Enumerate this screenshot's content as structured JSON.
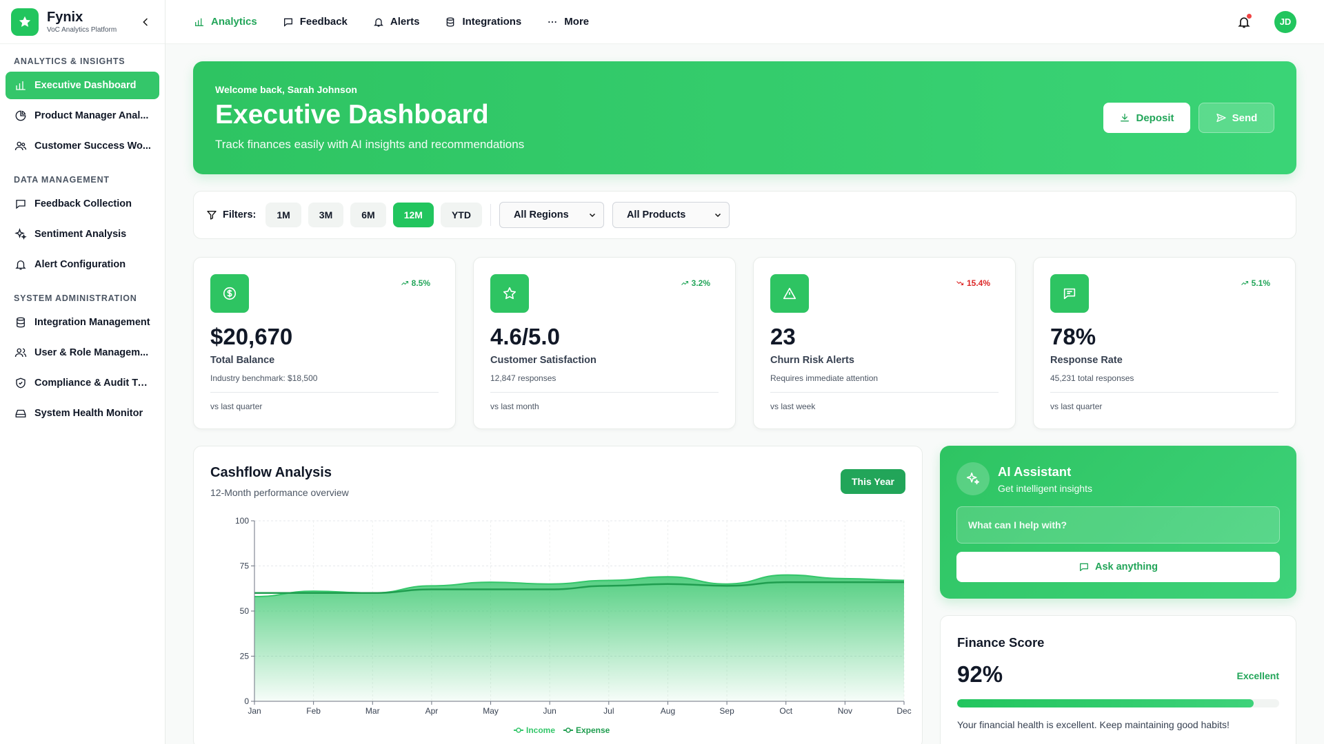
{
  "brand": {
    "name": "Fynix",
    "subtitle": "VoC Analytics Platform"
  },
  "sidebar": {
    "sections": [
      {
        "title": "ANALYTICS & INSIGHTS",
        "items": [
          {
            "label": "Executive Dashboard",
            "icon": "bar-chart-icon",
            "active": true
          },
          {
            "label": "Product Manager Anal...",
            "icon": "pie-chart-icon"
          },
          {
            "label": "Customer Success Wo...",
            "icon": "users-icon"
          }
        ]
      },
      {
        "title": "DATA MANAGEMENT",
        "items": [
          {
            "label": "Feedback Collection",
            "icon": "message-icon"
          },
          {
            "label": "Sentiment Analysis",
            "icon": "sparkles-icon"
          },
          {
            "label": "Alert Configuration",
            "icon": "bell-icon"
          }
        ]
      },
      {
        "title": "SYSTEM ADMINISTRATION",
        "items": [
          {
            "label": "Integration Management",
            "icon": "database-icon"
          },
          {
            "label": "User & Role Managem...",
            "icon": "user-group-icon"
          },
          {
            "label": "Compliance & Audit Trail",
            "icon": "shield-icon"
          },
          {
            "label": "System Health Monitor",
            "icon": "hard-drive-icon"
          }
        ]
      }
    ]
  },
  "topnav": {
    "tabs": [
      {
        "label": "Analytics",
        "icon": "bar-chart-icon",
        "active": true
      },
      {
        "label": "Feedback",
        "icon": "message-icon"
      },
      {
        "label": "Alerts",
        "icon": "bell-icon"
      },
      {
        "label": "Integrations",
        "icon": "database-icon"
      },
      {
        "label": "More",
        "icon": "more-icon"
      }
    ],
    "avatar_initials": "JD"
  },
  "hero": {
    "welcome": "Welcome back, Sarah Johnson",
    "title": "Executive Dashboard",
    "subtitle": "Track finances easily with AI insights and recommendations",
    "deposit_label": "Deposit",
    "send_label": "Send"
  },
  "filters": {
    "label": "Filters:",
    "periods": [
      "1M",
      "3M",
      "6M",
      "12M",
      "YTD"
    ],
    "active_period": "12M",
    "region": "All Regions",
    "product": "All Products"
  },
  "kpis": [
    {
      "icon": "dollar-icon",
      "change": "8.5%",
      "trend": "up",
      "value": "$20,670",
      "label": "Total Balance",
      "sub": "Industry benchmark: $18,500",
      "foot": "vs last quarter"
    },
    {
      "icon": "star-icon",
      "change": "3.2%",
      "trend": "up",
      "value": "4.6/5.0",
      "label": "Customer Satisfaction",
      "sub": "12,847 responses",
      "foot": "vs last month"
    },
    {
      "icon": "alert-triangle-icon",
      "change": "15.4%",
      "trend": "down",
      "value": "23",
      "label": "Churn Risk Alerts",
      "sub": "Requires immediate attention",
      "foot": "vs last week"
    },
    {
      "icon": "chat-icon",
      "change": "5.1%",
      "trend": "up",
      "value": "78%",
      "label": "Response Rate",
      "sub": "45,231 total responses",
      "foot": "vs last quarter"
    }
  ],
  "cashflow": {
    "title": "Cashflow Analysis",
    "subtitle": "12-Month performance overview",
    "range_button": "This Year"
  },
  "chart_data": {
    "type": "area",
    "x": [
      "Jan",
      "Feb",
      "Mar",
      "Apr",
      "May",
      "Jun",
      "Jul",
      "Aug",
      "Sep",
      "Oct",
      "Nov",
      "Dec"
    ],
    "ylim": [
      0,
      100
    ],
    "yticks": [
      0,
      25,
      50,
      75,
      100
    ],
    "grid": true,
    "legend": "bottom-center",
    "series": [
      {
        "name": "Income",
        "values": [
          58,
          61,
          60,
          64,
          66,
          65,
          67,
          69,
          65,
          70,
          68,
          67
        ],
        "color": "#34c66a"
      },
      {
        "name": "Expense",
        "values": [
          60,
          60,
          60,
          62,
          62,
          62,
          64,
          65,
          64,
          66,
          66,
          66
        ],
        "color": "#1f9d4f"
      }
    ]
  },
  "ai": {
    "title": "AI Assistant",
    "subtitle": "Get intelligent insights",
    "placeholder": "What can I help with?",
    "ask_label": "Ask anything"
  },
  "score": {
    "title": "Finance Score",
    "value": "92%",
    "percent": 92,
    "rating": "Excellent",
    "message": "Your financial health is excellent. Keep maintaining good habits!"
  },
  "colors": {
    "accent": "#22c55e",
    "accent_dark": "#22a559",
    "down": "#dc2626"
  }
}
